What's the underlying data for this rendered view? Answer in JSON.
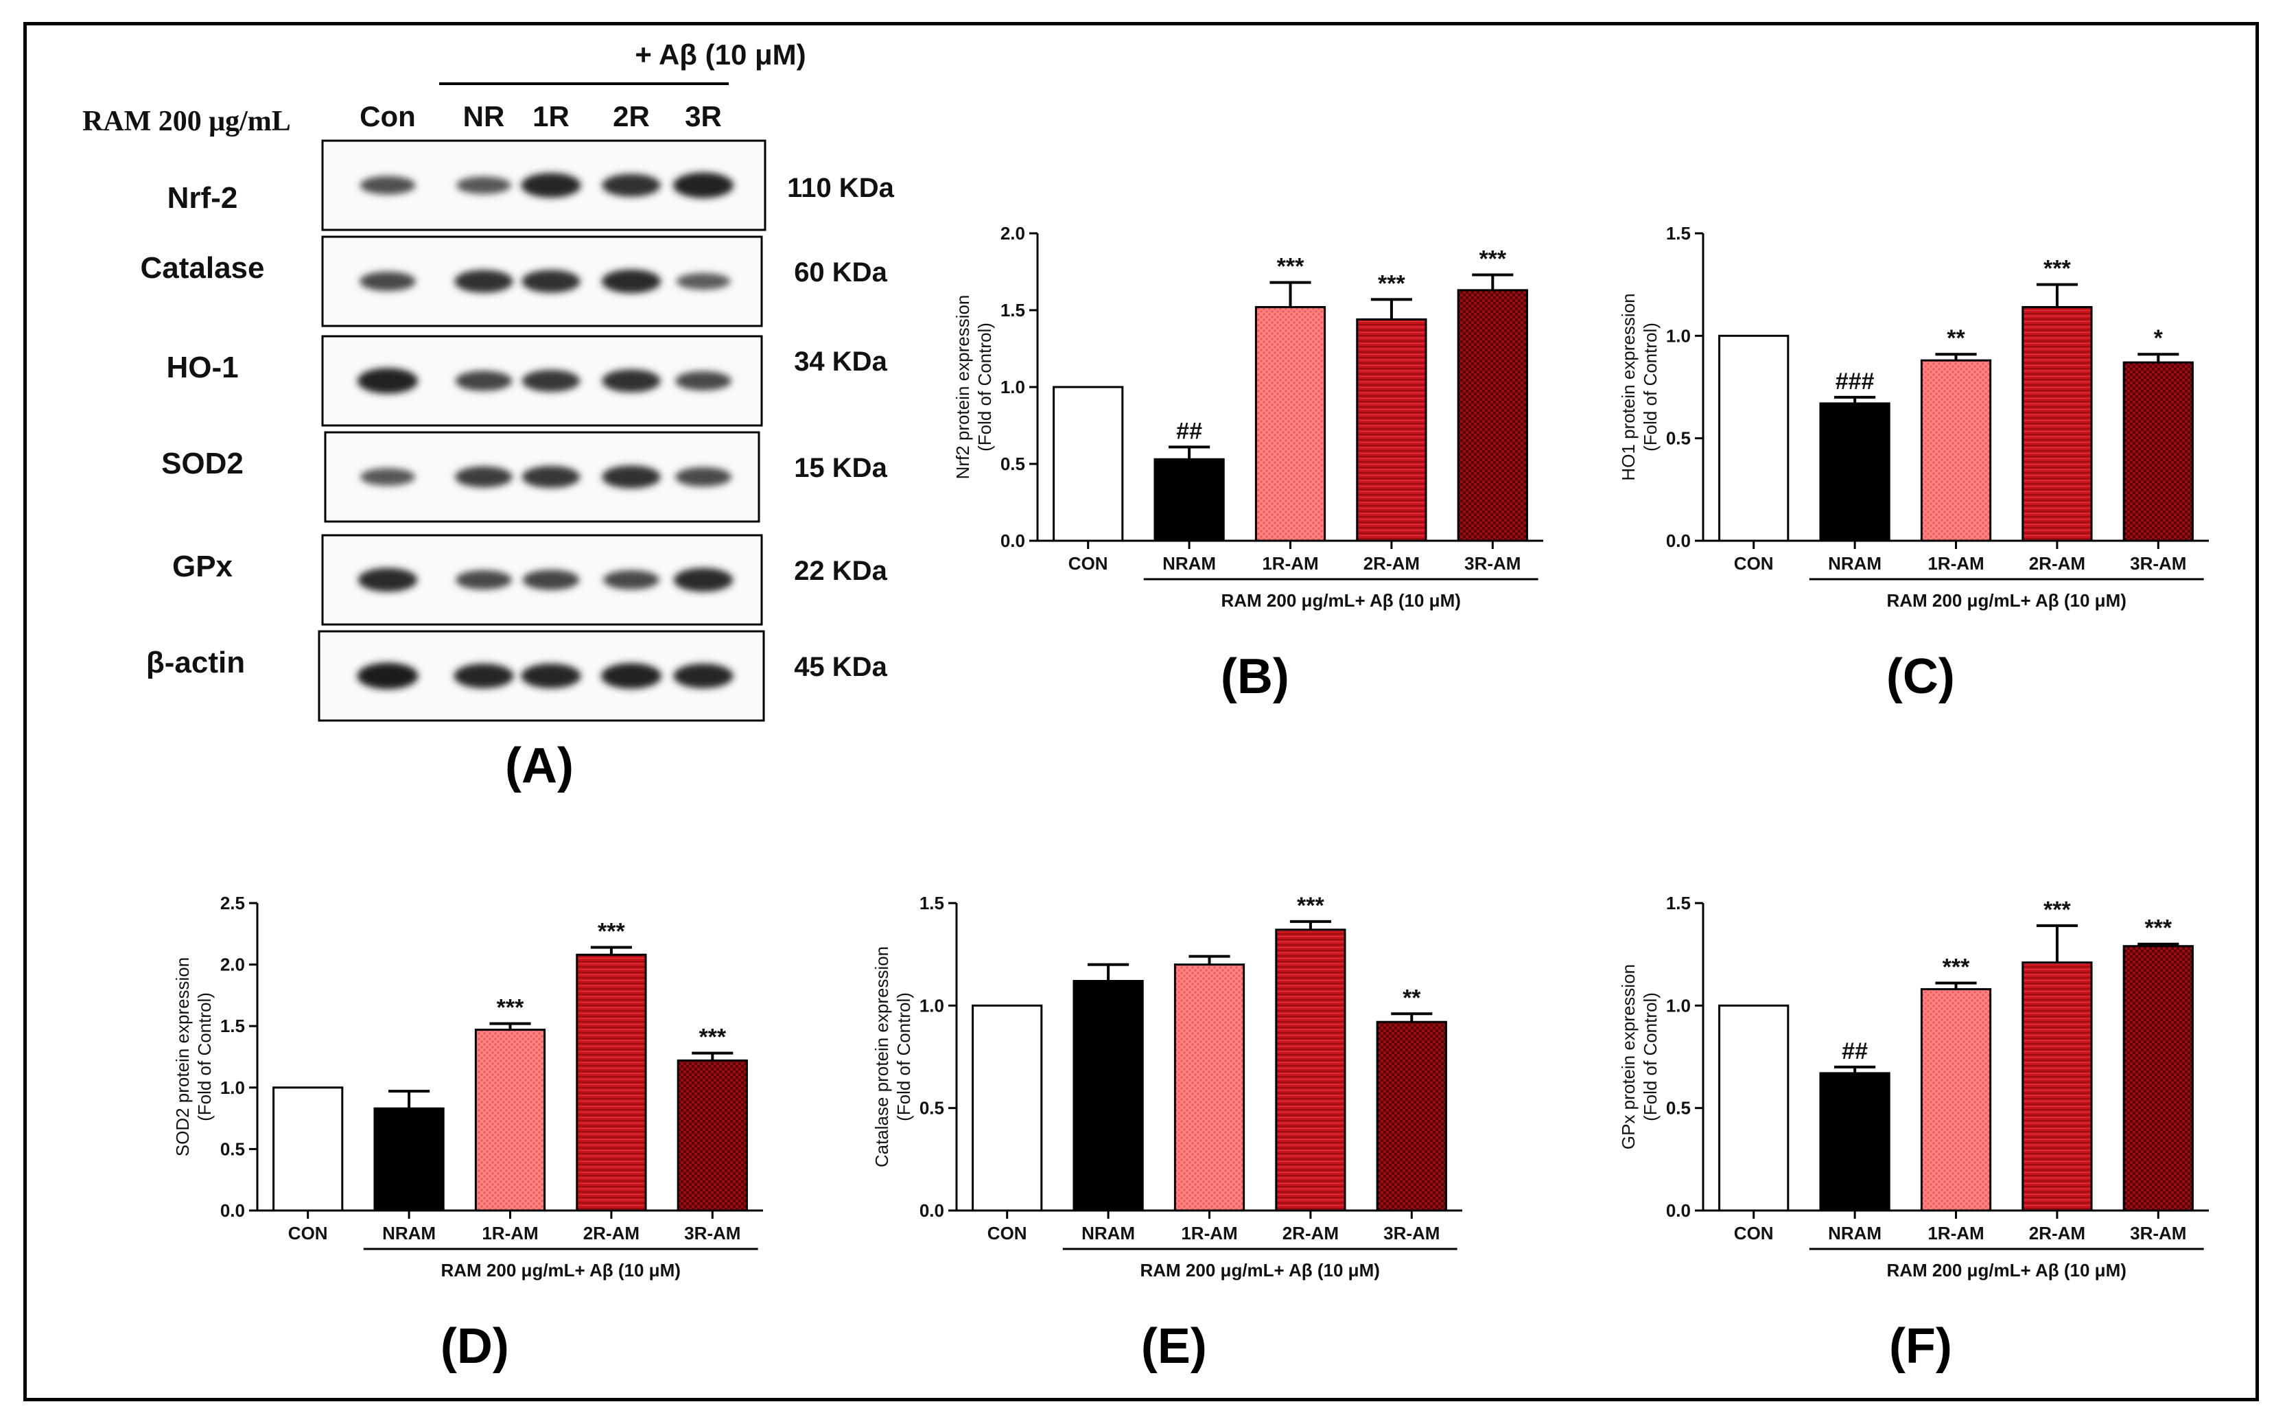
{
  "figure": {
    "colors": {
      "con": "#ffffff",
      "nram": "#000000",
      "r1": "#ff7a7a",
      "r2": "#c8141c",
      "r3": "#8c0a12",
      "stroke": "#000000"
    }
  },
  "blot": {
    "header_treatment": "+ Aβ (10 μM)",
    "row_label": "RAM 200 μg/mL",
    "lanes": [
      "Con",
      "NR",
      "1R",
      "2R",
      "3R"
    ],
    "proteins": [
      {
        "name": "Nrf-2",
        "kda": "110 KDa",
        "intensity": [
          0.5,
          0.45,
          0.85,
          0.75,
          0.9
        ]
      },
      {
        "name": "Catalase",
        "kda": "60 KDa",
        "intensity": [
          0.55,
          0.75,
          0.75,
          0.8,
          0.4
        ]
      },
      {
        "name": "HO-1",
        "kda": "34 KDa",
        "intensity": [
          0.9,
          0.6,
          0.7,
          0.75,
          0.55
        ]
      },
      {
        "name": "SOD2",
        "kda": "15 KDa",
        "intensity": [
          0.45,
          0.65,
          0.7,
          0.75,
          0.55
        ]
      },
      {
        "name": "GPx",
        "kda": "22 KDa",
        "intensity": [
          0.8,
          0.55,
          0.6,
          0.55,
          0.8
        ]
      },
      {
        "name": "β-actin",
        "kda": "45 KDa",
        "intensity": [
          0.95,
          0.85,
          0.85,
          0.9,
          0.85
        ]
      }
    ],
    "panel_label": "(A)"
  },
  "chart_data": [
    {
      "id": "B",
      "panel_label": "(B)",
      "type": "bar",
      "categories": [
        "CON",
        "NRAM",
        "1R-AM",
        "2R-AM",
        "3R-AM"
      ],
      "values": [
        1.0,
        0.53,
        1.52,
        1.44,
        1.63
      ],
      "errors": [
        0,
        0.08,
        0.16,
        0.13,
        0.1
      ],
      "annotations": [
        "",
        "##",
        "***",
        "***",
        "***"
      ],
      "ylabel": "Nrf2 protein expression",
      "ylabel2": "(Fold of Control)",
      "group_label": "RAM 200 μg/mL+ Aβ (10 μM)",
      "ylim": [
        0,
        2.0
      ],
      "yticks": [
        0.0,
        0.5,
        1.0,
        1.5,
        2.0
      ],
      "ytick_labels": [
        "0.0",
        "0.5",
        "1.0",
        "1.5",
        "2.0"
      ]
    },
    {
      "id": "C",
      "panel_label": "(C)",
      "type": "bar",
      "categories": [
        "CON",
        "NRAM",
        "1R-AM",
        "2R-AM",
        "3R-AM"
      ],
      "values": [
        1.0,
        0.67,
        0.88,
        1.14,
        0.87
      ],
      "errors": [
        0,
        0.03,
        0.03,
        0.11,
        0.04
      ],
      "annotations": [
        "",
        "###",
        "**",
        "***",
        "*"
      ],
      "ylabel": "HO1 protein expression",
      "ylabel2": "(Fold of Control)",
      "group_label": "RAM 200 μg/mL+ Aβ (10 μM)",
      "ylim": [
        0,
        1.5
      ],
      "yticks": [
        0.0,
        0.5,
        1.0,
        1.5
      ],
      "ytick_labels": [
        "0.0",
        "0.5",
        "1.0",
        "1.5"
      ]
    },
    {
      "id": "D",
      "panel_label": "(D)",
      "type": "bar",
      "categories": [
        "CON",
        "NRAM",
        "1R-AM",
        "2R-AM",
        "3R-AM"
      ],
      "values": [
        1.0,
        0.83,
        1.47,
        2.08,
        1.22
      ],
      "errors": [
        0,
        0.14,
        0.05,
        0.06,
        0.06
      ],
      "annotations": [
        "",
        "",
        "***",
        "***",
        "***"
      ],
      "ylabel": "SOD2 protein expression",
      "ylabel2": "(Fold of Control)",
      "group_label": "RAM 200 μg/mL+ Aβ (10 μM)",
      "ylim": [
        0,
        2.5
      ],
      "yticks": [
        0.0,
        0.5,
        1.0,
        1.5,
        2.0,
        2.5
      ],
      "ytick_labels": [
        "0.0",
        "0.5",
        "1.0",
        "1.5",
        "2.0",
        "2.5"
      ]
    },
    {
      "id": "E",
      "panel_label": "(E)",
      "type": "bar",
      "categories": [
        "CON",
        "NRAM",
        "1R-AM",
        "2R-AM",
        "3R-AM"
      ],
      "values": [
        1.0,
        1.12,
        1.2,
        1.37,
        0.92
      ],
      "errors": [
        0,
        0.08,
        0.04,
        0.04,
        0.04
      ],
      "annotations": [
        "",
        "",
        "",
        "***",
        "**"
      ],
      "ylabel": "Catalase protein expression",
      "ylabel2": "(Fold of Control)",
      "group_label": "RAM 200 μg/mL+ Aβ (10 μM)",
      "ylim": [
        0,
        1.5
      ],
      "yticks": [
        0.0,
        0.5,
        1.0,
        1.5
      ],
      "ytick_labels": [
        "0.0",
        "0.5",
        "1.0",
        "1.5"
      ]
    },
    {
      "id": "F",
      "panel_label": "(F)",
      "type": "bar",
      "categories": [
        "CON",
        "NRAM",
        "1R-AM",
        "2R-AM",
        "3R-AM"
      ],
      "values": [
        1.0,
        0.67,
        1.08,
        1.21,
        1.29
      ],
      "errors": [
        0,
        0.03,
        0.03,
        0.18,
        0.01
      ],
      "annotations": [
        "",
        "##",
        "***",
        "***",
        "***"
      ],
      "ylabel": "GPx protein expression",
      "ylabel2": "(Fold of Control)",
      "group_label": "RAM 200 μg/mL+ Aβ (10 μM)",
      "ylim": [
        0,
        1.5
      ],
      "yticks": [
        0.0,
        0.5,
        1.0,
        1.5
      ],
      "ytick_labels": [
        "0.0",
        "0.5",
        "1.0",
        "1.5"
      ]
    }
  ]
}
